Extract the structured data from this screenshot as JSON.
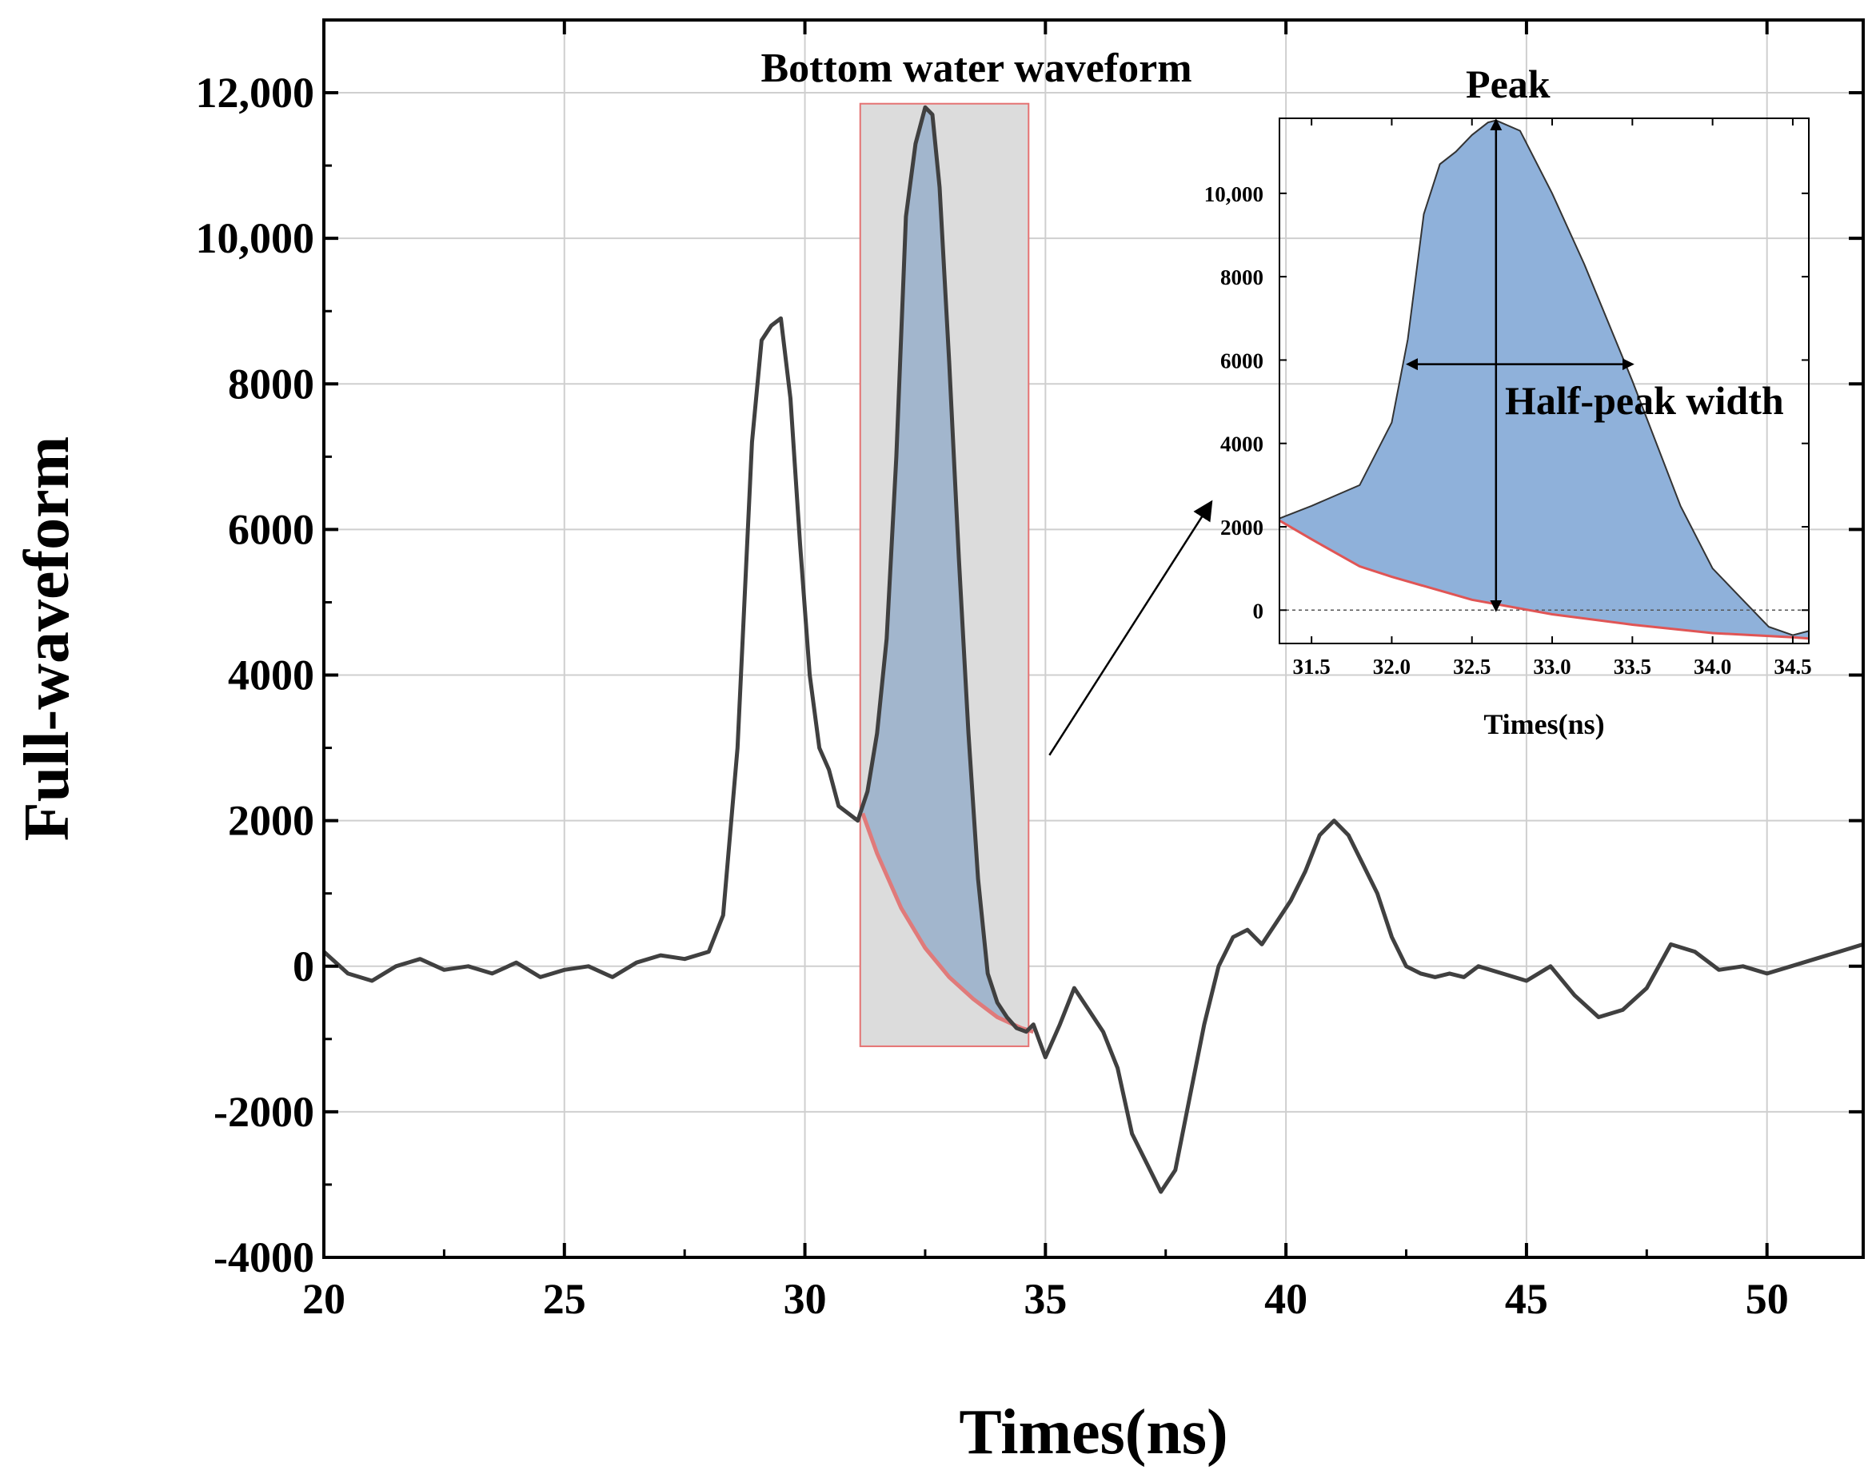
{
  "chart_data": [
    {
      "id": "main",
      "type": "line",
      "title": "",
      "xlabel": "Times(ns)",
      "ylabel": "Full-waveform",
      "xlim": [
        20,
        52
      ],
      "ylim": [
        -4000,
        13000
      ],
      "xticks": [
        20,
        25,
        30,
        35,
        40,
        45,
        50
      ],
      "xtick_labels": [
        "20",
        "25",
        "30",
        "35",
        "40",
        "45",
        "50"
      ],
      "yticks": [
        -4000,
        -2000,
        0,
        2000,
        4000,
        6000,
        8000,
        10000,
        12000
      ],
      "ytick_labels": [
        "-4000",
        "-2000",
        "0",
        "2000",
        "4000",
        "6000",
        "8000",
        "10,000",
        "12,000"
      ],
      "grid": true,
      "series": [
        {
          "name": "Full-waveform",
          "color": "#404040",
          "x": [
            20.0,
            20.5,
            21.0,
            21.5,
            22.0,
            22.5,
            23.0,
            23.5,
            24.0,
            24.5,
            25.0,
            25.5,
            26.0,
            26.5,
            27.0,
            27.5,
            28.0,
            28.3,
            28.6,
            28.9,
            29.1,
            29.3,
            29.5,
            29.7,
            29.9,
            30.1,
            30.3,
            30.5,
            30.7,
            30.9,
            31.1,
            31.3,
            31.5,
            31.7,
            31.9,
            32.1,
            32.3,
            32.5,
            32.65,
            32.8,
            33.0,
            33.2,
            33.4,
            33.6,
            33.8,
            34.0,
            34.2,
            34.4,
            34.6,
            34.75,
            35.0,
            35.3,
            35.6,
            35.9,
            36.2,
            36.5,
            36.8,
            37.1,
            37.4,
            37.7,
            38.0,
            38.3,
            38.6,
            38.9,
            39.2,
            39.5,
            39.8,
            40.1,
            40.4,
            40.7,
            41.0,
            41.3,
            41.6,
            41.9,
            42.2,
            42.5,
            42.8,
            43.1,
            43.4,
            43.7,
            44.0,
            44.5,
            45.0,
            45.5,
            46.0,
            46.5,
            47.0,
            47.5,
            48.0,
            48.5,
            49.0,
            49.5,
            50.0,
            50.5,
            51.0,
            51.5,
            52.0
          ],
          "y": [
            200,
            -100,
            -200,
            0,
            100,
            -50,
            0,
            -100,
            50,
            -150,
            -50,
            0,
            -150,
            50,
            150,
            100,
            200,
            700,
            3000,
            7200,
            8600,
            8800,
            8900,
            7800,
            5800,
            4000,
            3000,
            2700,
            2200,
            2100,
            2000,
            2400,
            3200,
            4500,
            7000,
            10300,
            11300,
            11800,
            11700,
            10700,
            8300,
            5600,
            3200,
            1200,
            -100,
            -500,
            -700,
            -850,
            -900,
            -800,
            -1250,
            -800,
            -300,
            -600,
            -900,
            -1400,
            -2300,
            -2700,
            -3100,
            -2800,
            -1800,
            -800,
            0,
            400,
            500,
            300,
            600,
            900,
            1300,
            1800,
            2000,
            1800,
            1400,
            1000,
            400,
            0,
            -100,
            -150,
            -100,
            -150,
            0,
            -100,
            -200,
            0,
            -400,
            -700,
            -600,
            -300,
            300,
            200,
            -50,
            0,
            -100,
            0,
            100,
            200,
            300
          ]
        },
        {
          "name": "Baseline",
          "color": "#e07a7a",
          "x": [
            31.2,
            31.5,
            32.0,
            32.5,
            33.0,
            33.5,
            34.0,
            34.5,
            34.75
          ],
          "y": [
            2100,
            1550,
            800,
            250,
            -150,
            -450,
            -700,
            -850,
            -900
          ]
        }
      ],
      "highlight_region": {
        "x": [
          31.15,
          34.65
        ],
        "y": [
          -1100,
          11850
        ],
        "fill": "#dcdcdc",
        "edge": "#e57373"
      },
      "annotations": [
        {
          "text": "Bottom water waveform"
        }
      ],
      "arrow_annotation": {
        "from_data": [
          35.0,
          -1300
        ]
      }
    },
    {
      "id": "inset",
      "type": "area",
      "title": "",
      "xlabel": "Times(ns)",
      "ylabel": "",
      "xlim": [
        31.3,
        34.6
      ],
      "ylim": [
        -800,
        11800
      ],
      "xticks": [
        31.5,
        32.0,
        32.5,
        33.0,
        33.5,
        34.0,
        34.5
      ],
      "xtick_labels": [
        "31.5",
        "32.0",
        "32.5",
        "33.0",
        "33.5",
        "34.0",
        "34.5"
      ],
      "yticks": [
        0,
        2000,
        4000,
        6000,
        8000,
        10000
      ],
      "ytick_labels": [
        "0",
        "2000",
        "4000",
        "6000",
        "8000",
        "10,000"
      ],
      "grid": false,
      "series": [
        {
          "name": "Waveform",
          "color": "#333333",
          "x": [
            31.3,
            31.5,
            31.8,
            32.0,
            32.1,
            32.2,
            32.3,
            32.4,
            32.5,
            32.6,
            32.65,
            32.8,
            33.0,
            33.2,
            33.5,
            33.8,
            34.0,
            34.2,
            34.35,
            34.5,
            34.6
          ],
          "y": [
            2200,
            2500,
            3000,
            4500,
            6500,
            9500,
            10700,
            11000,
            11400,
            11700,
            11750,
            11500,
            10000,
            8300,
            5500,
            2500,
            1000,
            200,
            -400,
            -600,
            -500
          ]
        },
        {
          "name": "Baseline",
          "color": "#e05555",
          "x": [
            31.3,
            31.5,
            31.8,
            32.0,
            32.5,
            33.0,
            33.5,
            34.0,
            34.5,
            34.6
          ],
          "y": [
            2150,
            1700,
            1050,
            800,
            250,
            -100,
            -350,
            -550,
            -650,
            -680
          ]
        }
      ],
      "fill_color": "#8fb1da",
      "zero_line": true,
      "annotations": [
        {
          "text": "Peak",
          "x": 32.65,
          "from_y": 11750,
          "to_y": 0
        },
        {
          "text": "Half-peak width",
          "y": 5900,
          "x_from": 32.1,
          "x_to": 33.5
        }
      ]
    }
  ]
}
